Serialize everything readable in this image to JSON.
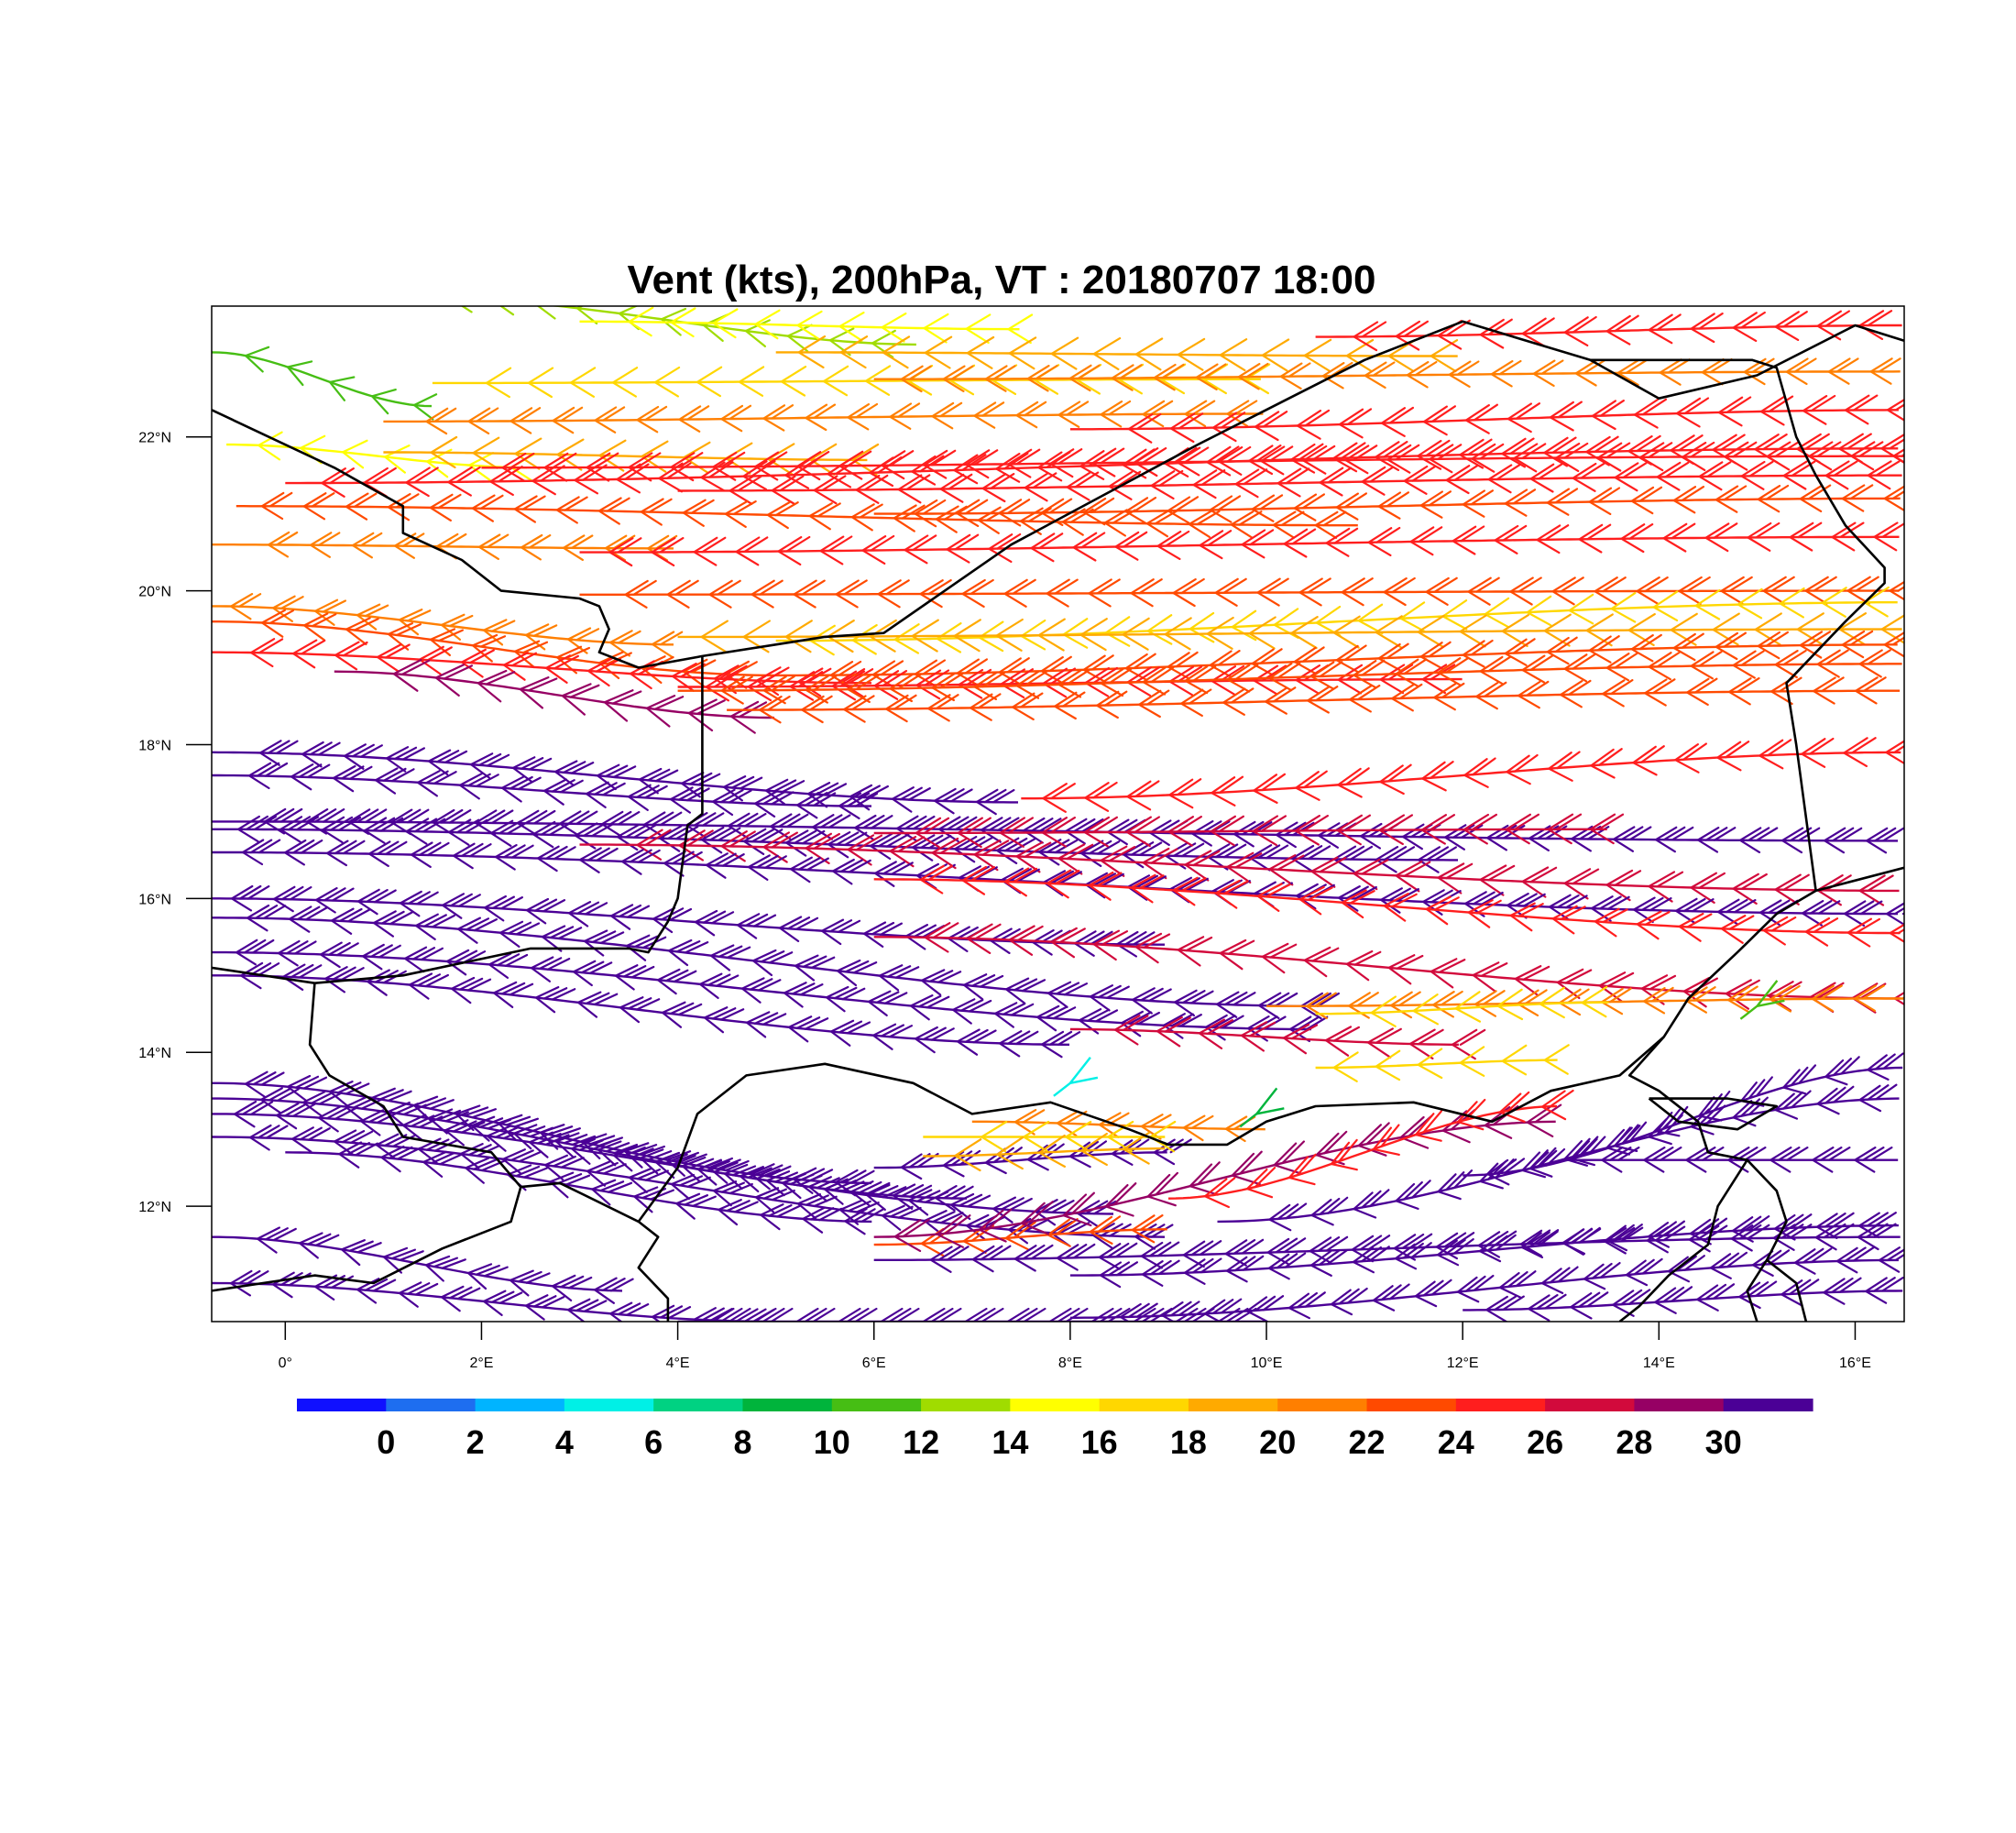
{
  "title": "Vent (kts), 200hPa, VT : 20180707  18:00",
  "map": {
    "lon_range": [
      -0.75,
      16.5
    ],
    "lat_range": [
      10.5,
      23.7
    ],
    "lon_ticks": [
      {
        "value": 0,
        "label": "0°"
      },
      {
        "value": 2,
        "label": "2°E"
      },
      {
        "value": 4,
        "label": "4°E"
      },
      {
        "value": 6,
        "label": "6°E"
      },
      {
        "value": 8,
        "label": "8°E"
      },
      {
        "value": 10,
        "label": "10°E"
      },
      {
        "value": 12,
        "label": "12°E"
      },
      {
        "value": 14,
        "label": "14°E"
      },
      {
        "value": 16,
        "label": "16°E"
      }
    ],
    "lat_ticks": [
      {
        "value": 12,
        "label": "12°N"
      },
      {
        "value": 14,
        "label": "14°N"
      },
      {
        "value": 16,
        "label": "16°N"
      },
      {
        "value": 18,
        "label": "18°N"
      },
      {
        "value": 20,
        "label": "20°N"
      },
      {
        "value": 22,
        "label": "22°N"
      }
    ],
    "borders": [
      [
        [
          -0.75,
          22.35
        ],
        [
          0.5,
          21.6
        ],
        [
          1.2,
          21.1
        ],
        [
          1.2,
          20.75
        ],
        [
          1.8,
          20.4
        ],
        [
          2.2,
          20.0
        ],
        [
          3.0,
          19.9
        ],
        [
          3.2,
          19.8
        ],
        [
          3.3,
          19.5
        ],
        [
          3.2,
          19.2
        ],
        [
          3.6,
          19.0
        ],
        [
          4.25,
          19.15
        ],
        [
          5.5,
          19.4
        ],
        [
          6.1,
          19.45
        ],
        [
          7.4,
          20.6
        ],
        [
          9.3,
          21.9
        ],
        [
          11.0,
          23.0
        ],
        [
          12.0,
          23.5
        ],
        [
          13.3,
          23.0
        ],
        [
          14.0,
          22.5
        ],
        [
          15.0,
          22.8
        ],
        [
          16.0,
          23.45
        ],
        [
          16.5,
          23.25
        ]
      ],
      [
        [
          4.25,
          19.15
        ],
        [
          4.25,
          17.1
        ],
        [
          4.1,
          16.95
        ],
        [
          4.0,
          16.0
        ],
        [
          3.9,
          15.7
        ],
        [
          3.7,
          15.3
        ],
        [
          3.5,
          15.35
        ],
        [
          2.5,
          15.35
        ],
        [
          1.2,
          15.0
        ],
        [
          0.3,
          14.9
        ],
        [
          -0.75,
          15.1
        ]
      ],
      [
        [
          0.3,
          14.9
        ],
        [
          0.25,
          14.1
        ],
        [
          0.45,
          13.7
        ],
        [
          1.0,
          13.3
        ],
        [
          1.2,
          12.9
        ],
        [
          2.1,
          12.7
        ],
        [
          2.4,
          12.25
        ],
        [
          2.3,
          11.8
        ],
        [
          1.6,
          11.45
        ],
        [
          0.9,
          11.0
        ],
        [
          0.3,
          11.1
        ],
        [
          -0.75,
          10.9
        ]
      ],
      [
        [
          2.4,
          12.25
        ],
        [
          2.8,
          12.3
        ],
        [
          3.6,
          11.8
        ],
        [
          3.8,
          11.6
        ],
        [
          3.6,
          11.2
        ],
        [
          3.9,
          10.8
        ],
        [
          3.9,
          10.5
        ]
      ],
      [
        [
          3.6,
          11.8
        ],
        [
          4.0,
          12.5
        ],
        [
          4.2,
          13.2
        ],
        [
          4.7,
          13.7
        ],
        [
          5.5,
          13.85
        ],
        [
          6.4,
          13.6
        ],
        [
          7.0,
          13.2
        ],
        [
          7.8,
          13.35
        ],
        [
          8.6,
          13.0
        ],
        [
          9.0,
          12.8
        ],
        [
          9.6,
          12.8
        ],
        [
          10.0,
          13.1
        ],
        [
          10.5,
          13.3
        ],
        [
          11.5,
          13.35
        ],
        [
          12.3,
          13.1
        ],
        [
          12.9,
          13.5
        ],
        [
          13.6,
          13.7
        ],
        [
          14.05,
          14.2
        ],
        [
          14.3,
          14.7
        ],
        [
          14.8,
          15.3
        ],
        [
          15.2,
          15.8
        ],
        [
          15.6,
          16.1
        ],
        [
          16.5,
          16.4
        ]
      ],
      [
        [
          15.6,
          16.1
        ],
        [
          15.4,
          18.0
        ],
        [
          15.3,
          18.8
        ],
        [
          15.9,
          19.6
        ],
        [
          16.3,
          20.1
        ],
        [
          16.3,
          20.3
        ],
        [
          15.9,
          20.85
        ],
        [
          15.6,
          21.5
        ],
        [
          15.4,
          22.0
        ],
        [
          15.2,
          22.9
        ],
        [
          14.95,
          23.0
        ],
        [
          13.3,
          23.0
        ]
      ],
      [
        [
          14.05,
          14.2
        ],
        [
          13.7,
          13.7
        ],
        [
          14.0,
          13.5
        ],
        [
          14.4,
          13.1
        ],
        [
          14.5,
          12.7
        ],
        [
          14.9,
          12.6
        ],
        [
          15.2,
          12.2
        ],
        [
          15.3,
          11.8
        ],
        [
          15.1,
          11.3
        ],
        [
          14.9,
          10.9
        ],
        [
          15.0,
          10.5
        ]
      ],
      [
        [
          14.9,
          12.6
        ],
        [
          14.6,
          12.0
        ],
        [
          14.5,
          11.5
        ],
        [
          14.1,
          11.1
        ],
        [
          13.8,
          10.7
        ],
        [
          13.6,
          10.5
        ]
      ],
      [
        [
          15.1,
          11.3
        ],
        [
          15.4,
          11.0
        ],
        [
          15.5,
          10.5
        ]
      ],
      [
        [
          13.9,
          13.4
        ],
        [
          14.7,
          13.4
        ],
        [
          15.2,
          13.3
        ],
        [
          14.8,
          13.0
        ],
        [
          14.2,
          13.1
        ],
        [
          13.9,
          13.4
        ]
      ]
    ],
    "barb_rows": [
      {
        "lat0": 23.8,
        "lat1": 23.2,
        "lon0": 1.5,
        "lon1": 6.5,
        "speed": 13
      },
      {
        "lat0": 23.1,
        "lat1": 22.4,
        "lon0": -0.75,
        "lon1": 1.5,
        "speed": 11
      },
      {
        "lat0": 23.5,
        "lat1": 23.4,
        "lon0": 3.0,
        "lon1": 7.5,
        "speed": 15
      },
      {
        "lat0": 23.1,
        "lat1": 23.05,
        "lon0": 5.0,
        "lon1": 12.0,
        "speed": 19
      },
      {
        "lat0": 23.3,
        "lat1": 23.45,
        "lon0": 10.5,
        "lon1": 16.5,
        "speed": 25
      },
      {
        "lat0": 22.7,
        "lat1": 22.75,
        "lon0": 1.5,
        "lon1": 10.0,
        "speed": 16
      },
      {
        "lat0": 22.75,
        "lat1": 22.85,
        "lon0": 6.0,
        "lon1": 16.5,
        "speed": 21
      },
      {
        "lat0": 22.2,
        "lat1": 22.3,
        "lon0": 1.0,
        "lon1": 10.0,
        "speed": 21
      },
      {
        "lat0": 22.1,
        "lat1": 22.35,
        "lon0": 8.0,
        "lon1": 16.5,
        "speed": 25
      },
      {
        "lat0": 21.9,
        "lat1": 21.6,
        "lon0": -0.6,
        "lon1": 2.5,
        "speed": 14
      },
      {
        "lat0": 21.8,
        "lat1": 21.7,
        "lon0": 1.0,
        "lon1": 6.0,
        "speed": 18
      },
      {
        "lat0": 21.6,
        "lat1": 21.75,
        "lon0": 2.0,
        "lon1": 16.5,
        "speed": 24
      },
      {
        "lat0": 21.4,
        "lat1": 21.85,
        "lon0": 0.0,
        "lon1": 16.5,
        "speed": 25
      },
      {
        "lat0": 21.3,
        "lat1": 21.5,
        "lon0": 4.0,
        "lon1": 16.5,
        "speed": 24
      },
      {
        "lat0": 21.1,
        "lat1": 20.85,
        "lon0": -0.5,
        "lon1": 11.0,
        "speed": 22
      },
      {
        "lat0": 21.0,
        "lat1": 21.2,
        "lon0": 6.0,
        "lon1": 16.5,
        "speed": 22
      },
      {
        "lat0": 20.6,
        "lat1": 20.55,
        "lon0": -0.75,
        "lon1": 4.0,
        "speed": 20
      },
      {
        "lat0": 20.5,
        "lat1": 20.7,
        "lon0": 3.0,
        "lon1": 16.5,
        "speed": 24
      },
      {
        "lat0": 19.95,
        "lat1": 20.0,
        "lon0": 3.0,
        "lon1": 16.5,
        "speed": 23
      },
      {
        "lat0": 19.8,
        "lat1": 19.3,
        "lon0": -0.75,
        "lon1": 4.0,
        "speed": 21
      },
      {
        "lat0": 19.35,
        "lat1": 19.85,
        "lon0": 5.0,
        "lon1": 16.5,
        "speed": 16
      },
      {
        "lat0": 19.6,
        "lat1": 18.9,
        "lon0": -0.75,
        "lon1": 5.0,
        "speed": 23
      },
      {
        "lat0": 19.4,
        "lat1": 19.5,
        "lon0": 4.0,
        "lon1": 16.5,
        "speed": 19
      },
      {
        "lat0": 19.2,
        "lat1": 18.8,
        "lon0": -0.75,
        "lon1": 6.0,
        "speed": 24
      },
      {
        "lat0": 18.9,
        "lat1": 19.3,
        "lon0": 5.0,
        "lon1": 16.5,
        "speed": 22
      },
      {
        "lat0": 18.75,
        "lat1": 18.85,
        "lon0": 4.0,
        "lon1": 12.0,
        "speed": 25
      },
      {
        "lat0": 18.7,
        "lat1": 19.05,
        "lon0": 4.0,
        "lon1": 16.5,
        "speed": 23
      },
      {
        "lat0": 18.95,
        "lat1": 18.35,
        "lon0": 0.5,
        "lon1": 5.0,
        "speed": 29
      },
      {
        "lat0": 18.45,
        "lat1": 18.7,
        "lon0": 4.5,
        "lon1": 16.5,
        "speed": 22
      },
      {
        "lat0": 17.9,
        "lat1": 17.25,
        "lon0": -0.75,
        "lon1": 7.5,
        "speed": 30
      },
      {
        "lat0": 17.3,
        "lat1": 17.9,
        "lon0": 7.5,
        "lon1": 16.5,
        "speed": 25
      },
      {
        "lat0": 17.6,
        "lat1": 17.2,
        "lon0": -0.75,
        "lon1": 6.0,
        "speed": 31
      },
      {
        "lat0": 17.0,
        "lat1": 16.75,
        "lon0": -0.75,
        "lon1": 16.5,
        "speed": 30
      },
      {
        "lat0": 16.9,
        "lat1": 16.5,
        "lon0": -0.75,
        "lon1": 12.0,
        "speed": 31
      },
      {
        "lat0": 16.85,
        "lat1": 16.9,
        "lon0": 6.0,
        "lon1": 13.5,
        "speed": 26
      },
      {
        "lat0": 16.7,
        "lat1": 16.1,
        "lon0": 3.0,
        "lon1": 16.5,
        "speed": 27
      },
      {
        "lat0": 16.6,
        "lat1": 15.8,
        "lon0": -0.75,
        "lon1": 16.5,
        "speed": 30
      },
      {
        "lat0": 16.25,
        "lat1": 15.55,
        "lon0": 6.0,
        "lon1": 16.5,
        "speed": 24
      },
      {
        "lat0": 16.0,
        "lat1": 15.4,
        "lon0": -0.75,
        "lon1": 9.0,
        "speed": 30
      },
      {
        "lat0": 15.75,
        "lat1": 14.6,
        "lon0": -0.75,
        "lon1": 10.5,
        "speed": 31
      },
      {
        "lat0": 15.5,
        "lat1": 14.7,
        "lon0": 6.0,
        "lon1": 16.5,
        "speed": 26
      },
      {
        "lat0": 15.3,
        "lat1": 14.3,
        "lon0": -0.75,
        "lon1": 10.5,
        "speed": 30
      },
      {
        "lat0": 14.6,
        "lat1": 14.7,
        "lon0": 10.0,
        "lon1": 16.5,
        "speed": 21
      },
      {
        "lat0": 14.5,
        "lat1": 14.65,
        "lon0": 10.5,
        "lon1": 13.5,
        "speed": 17
      },
      {
        "lat0": 15.0,
        "lat1": 14.1,
        "lon0": -0.75,
        "lon1": 8.0,
        "speed": 31
      },
      {
        "lat0": 14.3,
        "lat1": 14.1,
        "lon0": 8.0,
        "lon1": 12.0,
        "speed": 26
      },
      {
        "lat0": 13.8,
        "lat1": 13.9,
        "lon0": 10.5,
        "lon1": 13.0,
        "speed": 16
      },
      {
        "lat0": 13.6,
        "lat1": 12.3,
        "lon0": -0.75,
        "lon1": 6.0,
        "speed": 31
      },
      {
        "lat0": 13.4,
        "lat1": 12.1,
        "lon0": -0.75,
        "lon1": 7.0,
        "speed": 30
      },
      {
        "lat0": 13.2,
        "lat1": 11.9,
        "lon0": -0.75,
        "lon1": 8.5,
        "speed": 31
      },
      {
        "lat0": 12.9,
        "lat1": 11.6,
        "lon0": -0.75,
        "lon1": 9.0,
        "speed": 30
      },
      {
        "lat0": 12.7,
        "lat1": 11.8,
        "lon0": 0.0,
        "lon1": 6.0,
        "speed": 31
      },
      {
        "lat0": 12.5,
        "lat1": 12.7,
        "lon0": 6.0,
        "lon1": 9.0,
        "speed": 30
      },
      {
        "lat0": 13.1,
        "lat1": 13.0,
        "lon0": 7.0,
        "lon1": 10.0,
        "speed": 20
      },
      {
        "lat0": 12.9,
        "lat1": 12.9,
        "lon0": 6.5,
        "lon1": 9.0,
        "speed": 17
      },
      {
        "lat0": 12.65,
        "lat1": 12.75,
        "lon0": 6.5,
        "lon1": 9.0,
        "speed": 19
      },
      {
        "lat0": 11.5,
        "lat1": 11.7,
        "lon0": 6.0,
        "lon1": 9.0,
        "speed": 23
      },
      {
        "lat0": 11.6,
        "lat1": 13.1,
        "lon0": 6.0,
        "lon1": 13.0,
        "speed": 29
      },
      {
        "lat0": 12.1,
        "lat1": 13.3,
        "lon0": 9.0,
        "lon1": 13.0,
        "speed": 25
      },
      {
        "lat0": 11.8,
        "lat1": 13.4,
        "lon0": 9.5,
        "lon1": 16.5,
        "speed": 31
      },
      {
        "lat0": 12.4,
        "lat1": 13.8,
        "lon0": 12.0,
        "lon1": 16.5,
        "speed": 30
      },
      {
        "lat0": 12.6,
        "lat1": 12.6,
        "lon0": 13.0,
        "lon1": 16.5,
        "speed": 30
      },
      {
        "lat0": 11.3,
        "lat1": 11.6,
        "lon0": 6.0,
        "lon1": 16.5,
        "speed": 31
      },
      {
        "lat0": 11.1,
        "lat1": 11.75,
        "lon0": 8.0,
        "lon1": 16.5,
        "speed": 30
      },
      {
        "lat0": 11.6,
        "lat1": 10.9,
        "lon0": -0.75,
        "lon1": 3.5,
        "speed": 31
      },
      {
        "lat0": 11.0,
        "lat1": 10.5,
        "lon0": -0.75,
        "lon1": 5.0,
        "speed": 30
      },
      {
        "lat0": 10.5,
        "lat1": 10.5,
        "lon0": 4.0,
        "lon1": 10.0,
        "speed": 31
      },
      {
        "lat0": 10.55,
        "lat1": 11.3,
        "lon0": 8.0,
        "lon1": 16.5,
        "speed": 30
      },
      {
        "lat0": 10.65,
        "lat1": 10.9,
        "lon0": 12.0,
        "lon1": 16.5,
        "speed": 31
      }
    ],
    "calm_barbs": [
      {
        "lon": 8.0,
        "lat": 13.6,
        "speed": 4
      },
      {
        "lon": 9.9,
        "lat": 13.2,
        "speed": 9
      },
      {
        "lon": 15.0,
        "lat": 14.6,
        "speed": 11
      }
    ]
  },
  "colorbar": {
    "colors": [
      "#1010ff",
      "#1e6ef0",
      "#00b4ff",
      "#00f0e6",
      "#00d282",
      "#00b43c",
      "#46be14",
      "#a0dc00",
      "#ffff00",
      "#ffd700",
      "#ffaa00",
      "#ff7f00",
      "#ff4a00",
      "#ff1e1e",
      "#d20a3c",
      "#960064",
      "#4b0096"
    ],
    "labels": [
      "0",
      "2",
      "4",
      "6",
      "8",
      "10",
      "12",
      "14",
      "16",
      "18",
      "20",
      "22",
      "24",
      "26",
      "28",
      "30"
    ]
  }
}
